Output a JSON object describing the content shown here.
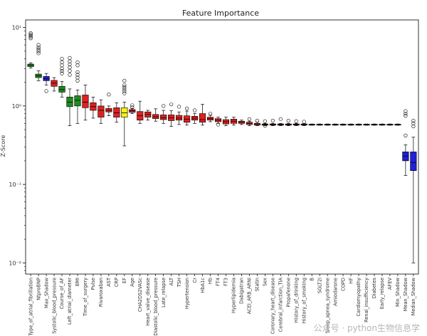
{
  "chart_data": {
    "type": "boxplot",
    "title": "Feature Importance",
    "ylabel": "Z-Score",
    "yscale": "log",
    "ylim": [
      0.0072,
      12.5
    ],
    "yticks": [
      {
        "value": 10,
        "label": "10¹"
      },
      {
        "value": 1,
        "label": "10⁰"
      },
      {
        "value": 0.1,
        "label": "10⁻¹"
      },
      {
        "value": 0.01,
        "label": "10⁻²"
      }
    ],
    "colors": {
      "green": "#1e8a1e",
      "blue": "#1f1fd6",
      "red": "#e02020",
      "yellow": "#f3f315",
      "shadow": "#e02020"
    },
    "boxes": [
      {
        "label": "Type_of_atrial_fibrillation",
        "color": "green",
        "q1": 3.18,
        "med": 3.3,
        "q3": 3.42,
        "wlo": 3.05,
        "whi": 3.55,
        "fliers": [
          7.3,
          7.6,
          7.9,
          8.2,
          8.5
        ]
      },
      {
        "label": "NtproBNP",
        "color": "green",
        "q1": 2.3,
        "med": 2.42,
        "q3": 2.55,
        "wlo": 2.1,
        "whi": 2.8,
        "fliers": [
          4.7,
          5.0,
          5.3,
          5.6,
          6.0
        ]
      },
      {
        "label": "Max_Shadow",
        "color": "blue",
        "q1": 2.1,
        "med": 2.22,
        "q3": 2.38,
        "wlo": 1.85,
        "whi": 2.6,
        "fliers": [
          1.55
        ]
      },
      {
        "label": "Systolic_blood_pressure",
        "color": "red",
        "q1": 1.78,
        "med": 1.95,
        "q3": 2.12,
        "wlo": 1.55,
        "whi": 2.3,
        "fliers": []
      },
      {
        "label": "Course_of_AF",
        "color": "green",
        "q1": 1.5,
        "med": 1.62,
        "q3": 1.78,
        "wlo": 1.3,
        "whi": 2.05,
        "fliers": [
          2.6,
          2.8,
          3.0,
          3.3,
          3.6,
          4.0
        ]
      },
      {
        "label": "Left_atrial_diameter",
        "color": "green",
        "q1": 0.98,
        "med": 1.12,
        "q3": 1.3,
        "wlo": 0.56,
        "whi": 1.65,
        "fliers": [
          2.5,
          2.8,
          3.1,
          3.4,
          3.7,
          4.1
        ]
      },
      {
        "label": "BMI",
        "color": "green",
        "q1": 1.0,
        "med": 1.18,
        "q3": 1.35,
        "wlo": 0.6,
        "whi": 1.6,
        "fliers": [
          2.1,
          2.3,
          2.5,
          2.7,
          3.3,
          3.6
        ]
      },
      {
        "label": "Time_of_surgery",
        "color": "red",
        "q1": 0.95,
        "med": 1.12,
        "q3": 1.38,
        "wlo": 0.66,
        "whi": 1.85,
        "fliers": []
      },
      {
        "label": "Pulse",
        "color": "red",
        "q1": 0.88,
        "med": 0.98,
        "q3": 1.1,
        "wlo": 0.7,
        "whi": 1.3,
        "fliers": []
      },
      {
        "label": "Rivaroxaban",
        "color": "red",
        "q1": 0.72,
        "med": 0.88,
        "q3": 1.0,
        "wlo": 0.6,
        "whi": 1.2,
        "fliers": []
      },
      {
        "label": "AST",
        "color": "red",
        "q1": 0.84,
        "med": 0.88,
        "q3": 0.93,
        "wlo": 0.75,
        "whi": 1.0,
        "fliers": [
          1.4
        ]
      },
      {
        "label": "CRP",
        "color": "red",
        "q1": 0.72,
        "med": 0.82,
        "q3": 0.95,
        "wlo": 0.62,
        "whi": 1.1,
        "fliers": []
      },
      {
        "label": "EF",
        "color": "yellow",
        "q1": 0.72,
        "med": 0.82,
        "q3": 0.95,
        "wlo": 0.31,
        "whi": 1.12,
        "fliers": [
          1.45,
          1.55,
          1.65,
          1.75,
          1.85,
          2.1
        ]
      },
      {
        "label": "Age",
        "color": "red",
        "q1": 0.83,
        "med": 0.87,
        "q3": 0.9,
        "wlo": 0.8,
        "whi": 0.93,
        "fliers": [
          0.96,
          1.02
        ]
      },
      {
        "label": "CHA2DS2VASc",
        "color": "red",
        "q1": 0.66,
        "med": 0.75,
        "q3": 0.85,
        "wlo": 0.6,
        "whi": 1.15,
        "fliers": []
      },
      {
        "label": "Heart_valve_disease",
        "color": "red",
        "q1": 0.72,
        "med": 0.78,
        "q3": 0.84,
        "wlo": 0.66,
        "whi": 0.88,
        "fliers": []
      },
      {
        "label": "Diastolic_blood_pressure",
        "color": "red",
        "q1": 0.69,
        "med": 0.73,
        "q3": 0.78,
        "wlo": 0.64,
        "whi": 0.92,
        "fliers": []
      },
      {
        "label": "Late_relapse",
        "color": "red",
        "q1": 0.67,
        "med": 0.71,
        "q3": 0.77,
        "wlo": 0.6,
        "whi": 0.88,
        "fliers": [
          1.0
        ]
      },
      {
        "label": "ALT",
        "color": "red",
        "q1": 0.65,
        "med": 0.71,
        "q3": 0.77,
        "wlo": 0.55,
        "whi": 0.87,
        "fliers": [
          1.05
        ]
      },
      {
        "label": "TSH",
        "color": "red",
        "q1": 0.66,
        "med": 0.7,
        "q3": 0.76,
        "wlo": 0.58,
        "whi": 0.84,
        "fliers": [
          0.98
        ]
      },
      {
        "label": "Hypertension",
        "color": "red",
        "q1": 0.62,
        "med": 0.68,
        "q3": 0.75,
        "wlo": 0.57,
        "whi": 0.86,
        "fliers": [
          0.93
        ]
      },
      {
        "label": "Cr",
        "color": "red",
        "q1": 0.66,
        "med": 0.7,
        "q3": 0.74,
        "wlo": 0.6,
        "whi": 0.8,
        "fliers": [
          0.88
        ]
      },
      {
        "label": "HbA1c",
        "color": "red",
        "q1": 0.62,
        "med": 0.67,
        "q3": 0.8,
        "wlo": 0.57,
        "whi": 1.05,
        "fliers": []
      },
      {
        "label": "Hb",
        "color": "red",
        "q1": 0.66,
        "med": 0.69,
        "q3": 0.72,
        "wlo": 0.63,
        "whi": 0.76,
        "fliers": [
          0.8
        ]
      },
      {
        "label": "FT4",
        "color": "red",
        "q1": 0.63,
        "med": 0.66,
        "q3": 0.69,
        "wlo": 0.6,
        "whi": 0.72,
        "fliers": [
          0.58
        ]
      },
      {
        "label": "FT3",
        "color": "red",
        "q1": 0.59,
        "med": 0.63,
        "q3": 0.67,
        "wlo": 0.56,
        "whi": 0.72,
        "fliers": []
      },
      {
        "label": "Hyperlipidemia",
        "color": "red",
        "q1": 0.6,
        "med": 0.64,
        "q3": 0.68,
        "wlo": 0.57,
        "whi": 0.72,
        "fliers": []
      },
      {
        "label": "Dabigatran",
        "color": "red",
        "q1": 0.6,
        "med": 0.62,
        "q3": 0.64,
        "wlo": 0.58,
        "whi": 0.66,
        "fliers": []
      },
      {
        "label": "ACEI_ARB_ARNI",
        "color": "red",
        "q1": 0.58,
        "med": 0.6,
        "q3": 0.62,
        "wlo": 0.56,
        "whi": 0.64,
        "fliers": [
          0.68
        ]
      },
      {
        "label": "Statin",
        "color": "red",
        "q1": 0.57,
        "med": 0.59,
        "q3": 0.6,
        "wlo": 0.56,
        "whi": 0.62,
        "fliers": [
          0.65
        ]
      },
      {
        "label": "Sex",
        "color": "red",
        "q1": 0.57,
        "med": 0.58,
        "q3": 0.59,
        "wlo": 0.56,
        "whi": 0.6,
        "fliers": [
          0.64,
          0.56
        ]
      },
      {
        "label": "Coronary_heart_disease",
        "color": "red",
        "q1": 0.57,
        "med": 0.58,
        "q3": 0.59,
        "wlo": 0.56,
        "whi": 0.6,
        "fliers": [
          0.65
        ]
      },
      {
        "label": "Cerebral_infarction_TIA",
        "color": "red",
        "q1": 0.57,
        "med": 0.58,
        "q3": 0.59,
        "wlo": 0.56,
        "whi": 0.6,
        "fliers": [
          0.68
        ]
      },
      {
        "label": "Propafenone",
        "color": "red",
        "q1": 0.57,
        "med": 0.58,
        "q3": 0.59,
        "wlo": 0.56,
        "whi": 0.6,
        "fliers": [
          0.65
        ]
      },
      {
        "label": "History_of_drinking",
        "color": "red",
        "q1": 0.57,
        "med": 0.58,
        "q3": 0.59,
        "wlo": 0.56,
        "whi": 0.6,
        "fliers": [
          0.64
        ]
      },
      {
        "label": "History_of_smoking",
        "color": "red",
        "q1": 0.57,
        "med": 0.58,
        "q3": 0.59,
        "wlo": 0.56,
        "whi": 0.6,
        "fliers": [
          0.63
        ]
      },
      {
        "label": "B",
        "color": "red",
        "q1": 0.572,
        "med": 0.578,
        "q3": 0.585,
        "wlo": 0.568,
        "whi": 0.59,
        "fliers": []
      },
      {
        "label": "SGLT2i",
        "color": "red",
        "q1": 0.572,
        "med": 0.578,
        "q3": 0.585,
        "wlo": 0.568,
        "whi": 0.59,
        "fliers": []
      },
      {
        "label": "Sleep_apnea_syndrome",
        "color": "red",
        "q1": 0.572,
        "med": 0.578,
        "q3": 0.585,
        "wlo": 0.568,
        "whi": 0.59,
        "fliers": []
      },
      {
        "label": "Amiodarone",
        "color": "red",
        "q1": 0.572,
        "med": 0.578,
        "q3": 0.585,
        "wlo": 0.568,
        "whi": 0.59,
        "fliers": []
      },
      {
        "label": "COPD",
        "color": "red",
        "q1": 0.572,
        "med": 0.578,
        "q3": 0.585,
        "wlo": 0.568,
        "whi": 0.59,
        "fliers": []
      },
      {
        "label": "HF",
        "color": "red",
        "q1": 0.572,
        "med": 0.578,
        "q3": 0.585,
        "wlo": 0.568,
        "whi": 0.59,
        "fliers": []
      },
      {
        "label": "Cardiomyopathy",
        "color": "red",
        "q1": 0.572,
        "med": 0.578,
        "q3": 0.585,
        "wlo": 0.568,
        "whi": 0.59,
        "fliers": []
      },
      {
        "label": "Renal_insufficiency",
        "color": "red",
        "q1": 0.572,
        "med": 0.578,
        "q3": 0.585,
        "wlo": 0.568,
        "whi": 0.59,
        "fliers": []
      },
      {
        "label": "Diabetes",
        "color": "red",
        "q1": 0.572,
        "med": 0.578,
        "q3": 0.585,
        "wlo": 0.568,
        "whi": 0.59,
        "fliers": []
      },
      {
        "label": "Early_relapse",
        "color": "red",
        "q1": 0.572,
        "med": 0.578,
        "q3": 0.585,
        "wlo": 0.568,
        "whi": 0.59,
        "fliers": []
      },
      {
        "label": "AFEV",
        "color": "red",
        "q1": 0.572,
        "med": 0.578,
        "q3": 0.585,
        "wlo": 0.568,
        "whi": 0.59,
        "fliers": []
      },
      {
        "label": "Min_Shadow",
        "color": "blue",
        "q1": 0.572,
        "med": 0.578,
        "q3": 0.585,
        "wlo": 0.568,
        "whi": 0.59,
        "fliers": []
      },
      {
        "label": "Mean_Shadow",
        "color": "blue",
        "q1": 0.2,
        "med": 0.23,
        "q3": 0.26,
        "wlo": 0.13,
        "whi": 0.32,
        "fliers": [
          0.42,
          0.75,
          0.8,
          0.86
        ]
      },
      {
        "label": "Median_Shadow",
        "color": "blue",
        "q1": 0.15,
        "med": 0.19,
        "q3": 0.26,
        "wlo": 0.01,
        "whi": 0.4,
        "fliers": [
          0.55,
          0.6,
          0.65
        ]
      }
    ]
  },
  "watermark": "公众号 · python生物信息学"
}
